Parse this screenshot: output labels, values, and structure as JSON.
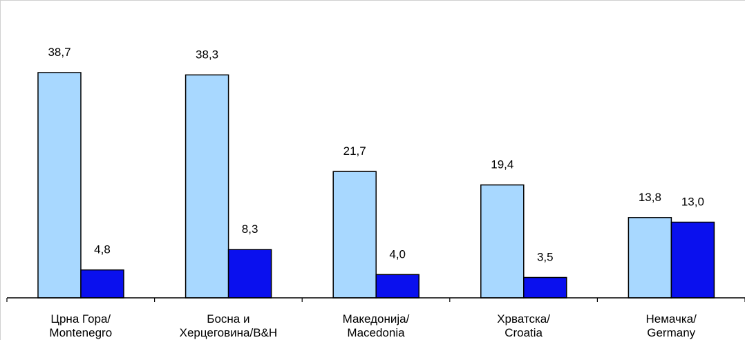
{
  "chart_data": {
    "type": "bar",
    "title": "",
    "xlabel": "",
    "ylabel": "",
    "ylim": [
      0,
      42
    ],
    "grid": false,
    "legend": "none",
    "categories": [
      [
        "Црна Гора/",
        "Montenegro"
      ],
      [
        "Босна и",
        "Херцеговина/B&H"
      ],
      [
        "Македонија/",
        "Macedonia"
      ],
      [
        "Хрватска/",
        "Croatia"
      ],
      [
        "Немачка/",
        "Germany"
      ]
    ],
    "series": [
      {
        "values": [
          38.7,
          38.3,
          21.7,
          19.4,
          13.8
        ],
        "labels": [
          "38,7",
          "38,3",
          "21,7",
          "19,4",
          "13,8"
        ],
        "color": "#a8d8ff"
      },
      {
        "values": [
          4.8,
          8.3,
          4.0,
          3.5,
          13.0
        ],
        "labels": [
          "4,8",
          "8,3",
          "4,0",
          "3,5",
          "13,0"
        ],
        "color": "#0a10ee"
      }
    ]
  }
}
